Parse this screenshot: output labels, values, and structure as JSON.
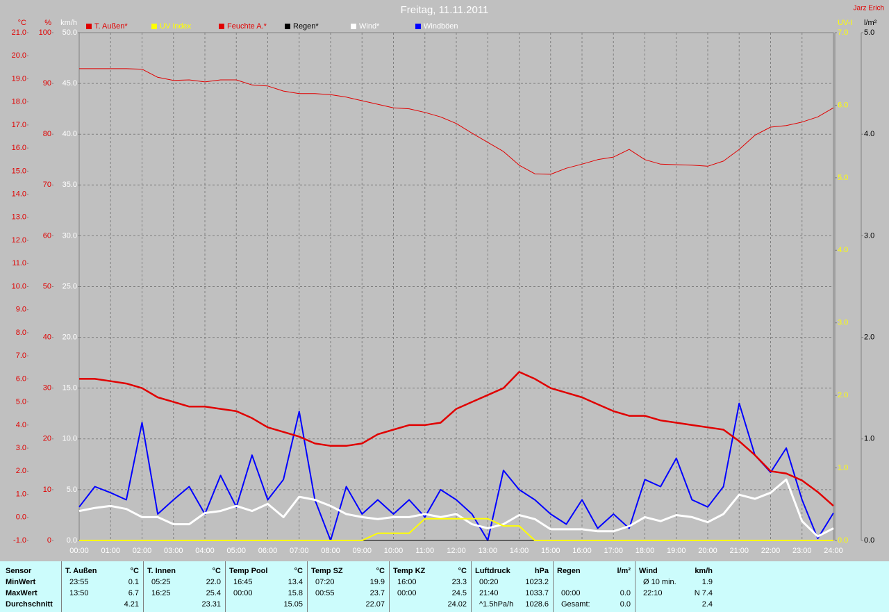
{
  "chart_data": {
    "type": "line",
    "title": "Freitag, 11.11.2011",
    "author": "Jarz Erich",
    "grid": true,
    "grid_axis": "kmh",
    "x": [
      0,
      0.5,
      1,
      1.5,
      2,
      2.5,
      3,
      3.5,
      4,
      4.5,
      5,
      5.5,
      6,
      6.5,
      7,
      7.5,
      8,
      8.5,
      9,
      9.5,
      10,
      10.5,
      11,
      11.5,
      12,
      12.5,
      13,
      13.5,
      14,
      14.5,
      15,
      15.5,
      16,
      16.5,
      17,
      17.5,
      18,
      18.5,
      19,
      19.5,
      20,
      20.5,
      21,
      21.5,
      22,
      22.5,
      23,
      23.5,
      24
    ],
    "xlim": [
      0,
      24
    ],
    "xticks": [
      {
        "value": 0,
        "label": "00:00"
      },
      {
        "value": 1,
        "label": "01:00"
      },
      {
        "value": 2,
        "label": "02:00"
      },
      {
        "value": 3,
        "label": "03:00"
      },
      {
        "value": 4,
        "label": "04:00"
      },
      {
        "value": 5,
        "label": "05:00"
      },
      {
        "value": 6,
        "label": "06:00"
      },
      {
        "value": 7,
        "label": "07:00"
      },
      {
        "value": 8,
        "label": "08:00"
      },
      {
        "value": 9,
        "label": "09:00"
      },
      {
        "value": 10,
        "label": "10:00"
      },
      {
        "value": 11,
        "label": "11:00"
      },
      {
        "value": 12,
        "label": "12:00"
      },
      {
        "value": 13,
        "label": "13:00"
      },
      {
        "value": 14,
        "label": "14:00"
      },
      {
        "value": 15,
        "label": "15:00"
      },
      {
        "value": 16,
        "label": "16:00"
      },
      {
        "value": 17,
        "label": "17:00"
      },
      {
        "value": 18,
        "label": "18:00"
      },
      {
        "value": 19,
        "label": "19:00"
      },
      {
        "value": 20,
        "label": "20:00"
      },
      {
        "value": 21,
        "label": "21:00"
      },
      {
        "value": 22,
        "label": "22:00"
      },
      {
        "value": 23,
        "label": "23:00"
      },
      {
        "value": 24,
        "label": "24:00"
      }
    ],
    "axes": [
      {
        "id": "temp",
        "label": "°C",
        "side": "left",
        "color": "#e00000",
        "lim": [
          -1,
          21
        ],
        "ticks": [
          {
            "value": -1,
            "label": "-1.0"
          },
          {
            "value": 0,
            "label": "0.0"
          },
          {
            "value": 1,
            "label": "1.0"
          },
          {
            "value": 2,
            "label": "2.0"
          },
          {
            "value": 3,
            "label": "3.0"
          },
          {
            "value": 4,
            "label": "4.0"
          },
          {
            "value": 5,
            "label": "5.0"
          },
          {
            "value": 6,
            "label": "6.0"
          },
          {
            "value": 7,
            "label": "7.0"
          },
          {
            "value": 8,
            "label": "8.0"
          },
          {
            "value": 9,
            "label": "9.0"
          },
          {
            "value": 10,
            "label": "10.0"
          },
          {
            "value": 11,
            "label": "11.0"
          },
          {
            "value": 12,
            "label": "12.0"
          },
          {
            "value": 13,
            "label": "13.0"
          },
          {
            "value": 14,
            "label": "14.0"
          },
          {
            "value": 15,
            "label": "15.0"
          },
          {
            "value": 16,
            "label": "16.0"
          },
          {
            "value": 17,
            "label": "17.0"
          },
          {
            "value": 18,
            "label": "18.0"
          },
          {
            "value": 19,
            "label": "19.0"
          },
          {
            "value": 20,
            "label": "20.0"
          },
          {
            "value": 21,
            "label": "21.0"
          }
        ]
      },
      {
        "id": "pct",
        "label": "%",
        "side": "left",
        "color": "#e00000",
        "lim": [
          0,
          100
        ],
        "ticks": [
          0,
          10,
          20,
          30,
          40,
          50,
          60,
          70,
          80,
          90,
          100
        ]
      },
      {
        "id": "kmh",
        "label": "km/h",
        "side": "left",
        "color": "#ffffff",
        "lim": [
          0,
          50
        ],
        "ticks": [
          {
            "value": 0,
            "label": "0.0"
          },
          {
            "value": 5,
            "label": "5.0"
          },
          {
            "value": 10,
            "label": "10.0"
          },
          {
            "value": 15,
            "label": "15.0"
          },
          {
            "value": 20,
            "label": "20.0"
          },
          {
            "value": 25,
            "label": "25.0"
          },
          {
            "value": 30,
            "label": "30.0"
          },
          {
            "value": 35,
            "label": "35.0"
          },
          {
            "value": 40,
            "label": "40.0"
          },
          {
            "value": 45,
            "label": "45.0"
          },
          {
            "value": 50,
            "label": "50.0"
          }
        ]
      },
      {
        "id": "uv",
        "label": "UV-I",
        "side": "right",
        "color": "#ffff00",
        "lim": [
          0,
          7
        ],
        "ticks": [
          {
            "value": 0,
            "label": "0.0"
          },
          {
            "value": 1,
            "label": "1.0"
          },
          {
            "value": 2,
            "label": "2.0"
          },
          {
            "value": 3,
            "label": "3.0"
          },
          {
            "value": 4,
            "label": "4.0"
          },
          {
            "value": 5,
            "label": "5.0"
          },
          {
            "value": 6,
            "label": "6.0"
          },
          {
            "value": 7,
            "label": "7.0"
          }
        ]
      },
      {
        "id": "rain",
        "label": "l/m²",
        "side": "right",
        "color": "#000000",
        "lim": [
          0,
          5
        ],
        "ticks": [
          {
            "value": 0,
            "label": "0.0"
          },
          {
            "value": 1,
            "label": "1.0"
          },
          {
            "value": 2,
            "label": "2.0"
          },
          {
            "value": 3,
            "label": "3.0"
          },
          {
            "value": 4,
            "label": "4.0"
          },
          {
            "value": 5,
            "label": "5.0"
          }
        ]
      }
    ],
    "series": [
      {
        "name": "T. Außen*",
        "color": "#e00000",
        "label_color": "#e00000",
        "axis": "temp",
        "width": 2.5,
        "values": [
          6.0,
          6.0,
          5.9,
          5.8,
          5.6,
          5.2,
          5.0,
          4.8,
          4.8,
          4.7,
          4.6,
          4.3,
          3.9,
          3.7,
          3.5,
          3.2,
          3.1,
          3.1,
          3.2,
          3.6,
          3.8,
          4.0,
          4.0,
          4.1,
          4.7,
          5.0,
          5.3,
          5.6,
          6.3,
          6.0,
          5.6,
          5.4,
          5.2,
          4.9,
          4.6,
          4.4,
          4.4,
          4.2,
          4.1,
          4.0,
          3.9,
          3.8,
          3.3,
          2.7,
          2.0,
          1.9,
          1.6,
          1.1,
          0.5
        ]
      },
      {
        "name": "UV Index",
        "color": "#ffff00",
        "label_color": "#ffff00",
        "axis": "uv",
        "width": 2,
        "values": [
          0,
          0,
          0,
          0,
          0,
          0,
          0,
          0,
          0,
          0,
          0,
          0,
          0,
          0,
          0,
          0,
          0,
          0,
          0,
          0.1,
          0.1,
          0.1,
          0.3,
          0.3,
          0.3,
          0.3,
          0.3,
          0.2,
          0.2,
          0,
          0,
          0,
          0,
          0,
          0,
          0,
          0,
          0,
          0,
          0,
          0,
          0,
          0,
          0,
          0,
          0,
          0,
          0,
          0
        ]
      },
      {
        "name": "Feuchte A.*",
        "color": "#e00000",
        "label_color": "#e00000",
        "axis": "pct",
        "width": 1,
        "values": [
          92.9,
          92.9,
          92.9,
          92.9,
          92.8,
          91.2,
          90.6,
          90.7,
          90.3,
          90.7,
          90.7,
          89.7,
          89.5,
          88.5,
          88.0,
          88.0,
          87.8,
          87.3,
          86.6,
          85.9,
          85.2,
          85.0,
          84.3,
          83.4,
          82.1,
          80.2,
          78.4,
          76.6,
          73.9,
          72.2,
          72.1,
          73.3,
          74.1,
          75.0,
          75.5,
          77.0,
          75.0,
          74.1,
          74.0,
          73.9,
          73.7,
          74.7,
          77.0,
          79.8,
          81.4,
          81.7,
          82.4,
          83.4,
          85.2
        ]
      },
      {
        "name": "Regen*",
        "color": "#000000",
        "label_color": "#000000",
        "axis": "rain",
        "width": 1,
        "values": [
          0,
          0,
          0,
          0,
          0,
          0,
          0,
          0,
          0,
          0,
          0,
          0,
          0,
          0,
          0,
          0,
          0,
          0,
          0,
          0,
          0,
          0,
          0,
          0,
          0,
          0,
          0,
          0,
          0,
          0,
          0,
          0,
          0,
          0,
          0,
          0,
          0,
          0,
          0,
          0,
          0,
          0,
          0,
          0,
          0,
          0,
          0,
          0,
          0
        ]
      },
      {
        "name": "Wind*",
        "color": "#ffffff",
        "label_color": "#ffffff",
        "axis": "kmh",
        "width": 3,
        "values": [
          2.9,
          3.2,
          3.4,
          3.1,
          2.3,
          2.3,
          1.6,
          1.6,
          2.7,
          2.9,
          3.4,
          2.9,
          3.6,
          2.3,
          4.3,
          4.0,
          3.4,
          2.6,
          2.3,
          2.1,
          2.3,
          2.3,
          2.6,
          2.3,
          2.6,
          1.6,
          1.2,
          1.6,
          2.5,
          2.1,
          1.1,
          1.1,
          1.1,
          0.9,
          0.9,
          1.4,
          2.3,
          1.9,
          2.5,
          2.3,
          1.8,
          2.6,
          4.5,
          4.1,
          4.7,
          6.0,
          1.9,
          0.4,
          1.2
        ]
      },
      {
        "name": "Windböen",
        "color": "#0000ff",
        "label_color": "#ffffff",
        "axis": "kmh",
        "width": 2,
        "values": [
          3.3,
          5.3,
          4.7,
          4.0,
          11.6,
          2.6,
          4.0,
          5.3,
          2.6,
          6.4,
          3.3,
          8.4,
          4.0,
          6.0,
          12.7,
          4.0,
          0,
          5.3,
          2.6,
          4.0,
          2.6,
          4.0,
          2.3,
          5.0,
          4.0,
          2.6,
          0,
          6.9,
          5.0,
          4.0,
          2.6,
          1.6,
          4.0,
          1.2,
          2.6,
          1.2,
          6.0,
          5.3,
          8.1,
          4.0,
          3.3,
          5.3,
          13.5,
          8.4,
          6.7,
          9.1,
          4.0,
          0.2,
          2.7
        ]
      }
    ]
  },
  "table": {
    "row_labels": [
      "Sensor",
      "MinWert",
      "MaxWert",
      "Durchschnitt"
    ],
    "groups": [
      {
        "name": "T. Außen",
        "unit": "°C",
        "rows": [
          [
            "23:55",
            "0.1"
          ],
          [
            "13:50",
            "6.7"
          ],
          [
            null,
            "4.21"
          ]
        ]
      },
      {
        "name": "T. Innen",
        "unit": "°C",
        "rows": [
          [
            "05:25",
            "22.0"
          ],
          [
            "16:25",
            "25.4"
          ],
          [
            null,
            "23.31"
          ]
        ]
      },
      {
        "name": "Temp Pool",
        "unit": "°C",
        "rows": [
          [
            "16:45",
            "13.4"
          ],
          [
            "00:00",
            "15.8"
          ],
          [
            null,
            "15.05"
          ]
        ]
      },
      {
        "name": "Temp SZ",
        "unit": "°C",
        "rows": [
          [
            "07:20",
            "19.9"
          ],
          [
            "00:55",
            "23.7"
          ],
          [
            null,
            "22.07"
          ]
        ]
      },
      {
        "name": "Temp KZ",
        "unit": "°C",
        "rows": [
          [
            "16:00",
            "23.3"
          ],
          [
            "00:00",
            "24.5"
          ],
          [
            null,
            "24.02"
          ]
        ]
      },
      {
        "name": "Luftdruck",
        "unit": "hPa",
        "rows": [
          [
            "00:20",
            "1023.2"
          ],
          [
            "21:40",
            "1033.7"
          ],
          [
            "^1.5hPa/h",
            "1028.6"
          ]
        ]
      },
      {
        "name": "Regen",
        "unit": "l/m²",
        "rows": [
          [
            null,
            null
          ],
          [
            "00:00",
            "0.0"
          ],
          [
            "Gesamt:",
            "0.0"
          ]
        ]
      },
      {
        "name": "Wind",
        "unit": "km/h",
        "rows": [
          [
            "Ø 10 min.",
            "1.9"
          ],
          [
            "22:10",
            "N 7.4"
          ],
          [
            null,
            "2.4"
          ]
        ]
      }
    ]
  }
}
